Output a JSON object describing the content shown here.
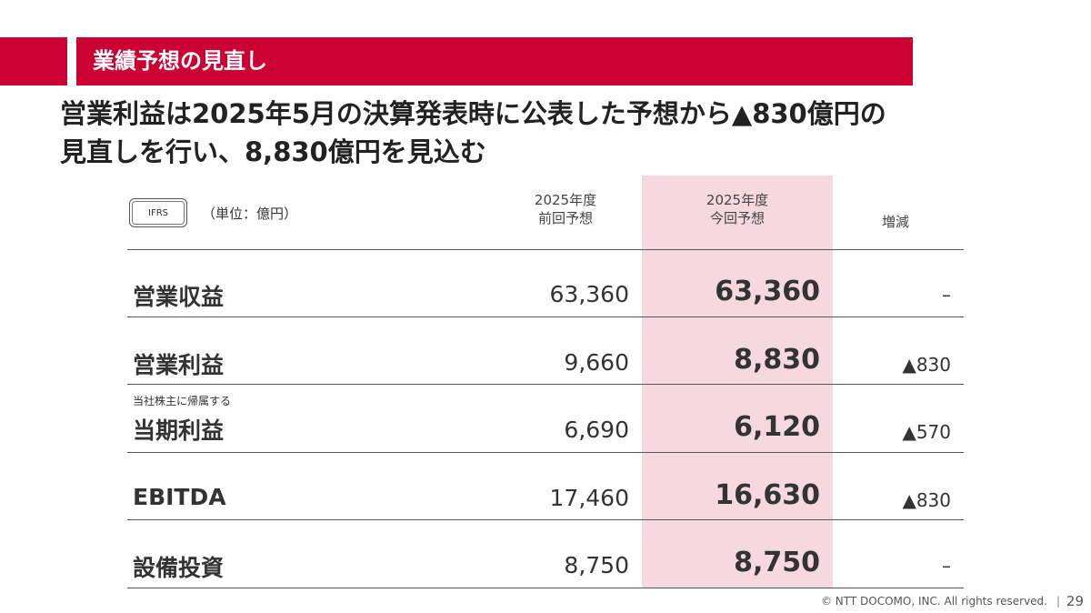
{
  "header": {
    "section_title": "業績予想の見直し"
  },
  "headline": {
    "line1": "営業利益は2025年5月の決算発表時に公表した予想から▲830億円の",
    "line2": "見直しを行い、8,830億円を見込む"
  },
  "table": {
    "badge": "IFRS",
    "unit": "（単位：億円）",
    "columns": {
      "prev_line1": "2025年度",
      "prev_line2": "前回予想",
      "curr_line1": "2025年度",
      "curr_line2": "今回予想",
      "diff": "増減"
    },
    "rows": [
      {
        "sublabel": "",
        "label": "営業収益",
        "prev": "63,360",
        "curr": "63,360",
        "diff": "–"
      },
      {
        "sublabel": "",
        "label": "営業利益",
        "prev": "9,660",
        "curr": "8,830",
        "diff": "▲830"
      },
      {
        "sublabel": "当社株主に帰属する",
        "label": "当期利益",
        "prev": "6,690",
        "curr": "6,120",
        "diff": "▲570"
      },
      {
        "sublabel": "",
        "label": "EBITDA",
        "prev": "17,460",
        "curr": "16,630",
        "diff": "▲830"
      },
      {
        "sublabel": "",
        "label": "設備投資",
        "prev": "8,750",
        "curr": "8,750",
        "diff": "–"
      }
    ]
  },
  "footer": {
    "copyright": "© NTT DOCOMO, INC.  All rights reserved.",
    "separator": "|",
    "page_number": "29"
  },
  "colors": {
    "accent": "#cc0033",
    "highlight": "#f6d9e0"
  }
}
